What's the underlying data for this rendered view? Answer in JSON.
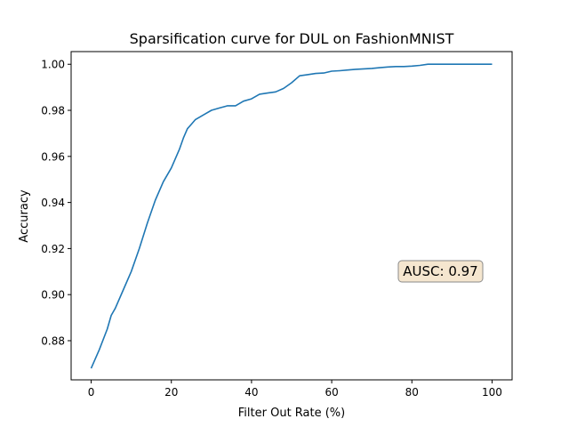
{
  "chart_data": {
    "type": "line",
    "title": "Sparsification curve for DUL on FashionMNIST",
    "xlabel": "Filter Out Rate (%)",
    "ylabel": "Accuracy",
    "xlim": [
      -5,
      105
    ],
    "ylim": [
      0.863,
      1.0055
    ],
    "xticks": [
      0,
      20,
      40,
      60,
      80,
      100
    ],
    "xtick_labels": [
      "0",
      "20",
      "40",
      "60",
      "80",
      "100"
    ],
    "yticks": [
      0.88,
      0.9,
      0.92,
      0.94,
      0.96,
      0.98,
      1.0
    ],
    "ytick_labels": [
      "0.88",
      "0.90",
      "0.92",
      "0.94",
      "0.96",
      "0.98",
      "1.00"
    ],
    "grid": false,
    "line_color": "#1f77b4",
    "annotation": {
      "text": "AUSC: 0.97",
      "box_fill": "#f5e6cf",
      "box_edge": "#8a8a8a"
    },
    "series": [
      {
        "x": [
          0,
          2,
          4,
          5,
          6,
          8,
          10,
          12,
          14,
          16,
          18,
          20,
          22,
          23,
          24,
          25,
          26,
          28,
          30,
          32,
          34,
          36,
          38,
          40,
          42,
          44,
          46,
          48,
          50,
          52,
          54,
          56,
          58,
          60,
          62,
          64,
          66,
          68,
          70,
          72,
          74,
          76,
          78,
          80,
          82,
          84,
          86,
          88,
          90,
          92,
          94,
          96,
          98,
          100
        ],
        "y": [
          0.868,
          0.876,
          0.885,
          0.891,
          0.894,
          0.902,
          0.91,
          0.92,
          0.931,
          0.941,
          0.949,
          0.955,
          0.963,
          0.968,
          0.972,
          0.974,
          0.976,
          0.978,
          0.98,
          0.981,
          0.982,
          0.982,
          0.984,
          0.985,
          0.987,
          0.9875,
          0.988,
          0.9895,
          0.992,
          0.995,
          0.9955,
          0.996,
          0.9962,
          0.997,
          0.9972,
          0.9975,
          0.9978,
          0.998,
          0.9982,
          0.9985,
          0.9988,
          0.999,
          0.999,
          0.9992,
          0.9995,
          1.0,
          1.0,
          1.0,
          1.0,
          1.0,
          1.0,
          1.0,
          1.0,
          1.0
        ]
      }
    ]
  }
}
